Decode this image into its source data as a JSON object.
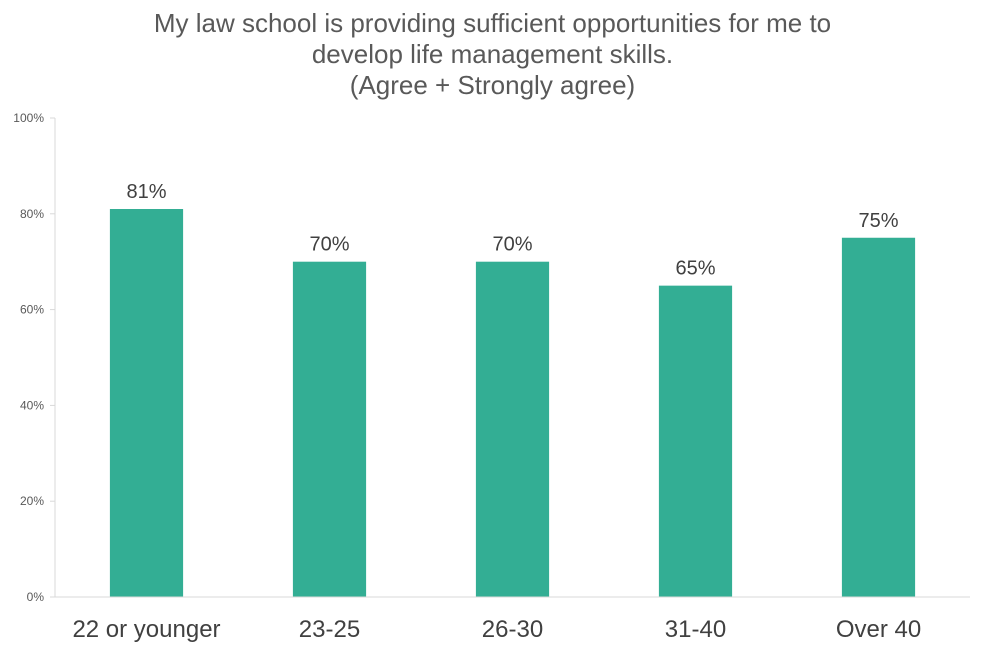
{
  "chart_data": {
    "type": "bar",
    "title_lines": [
      "My law school is providing sufficient opportunities for me to",
      "develop life management skills.",
      "(Agree + Strongly agree)"
    ],
    "categories": [
      "22 or younger",
      "23-25",
      "26-30",
      "31-40",
      "Over 40"
    ],
    "values": [
      81,
      70,
      70,
      65,
      75
    ],
    "data_labels": [
      "81%",
      "70%",
      "70%",
      "65%",
      "75%"
    ],
    "y_ticks": [
      "0%",
      "20%",
      "40%",
      "60%",
      "80%",
      "100%"
    ],
    "ylim": [
      0,
      100
    ],
    "grid": false,
    "legend": "none",
    "bar_color": "#33AE94",
    "axis_color": "#D9D9D9"
  }
}
